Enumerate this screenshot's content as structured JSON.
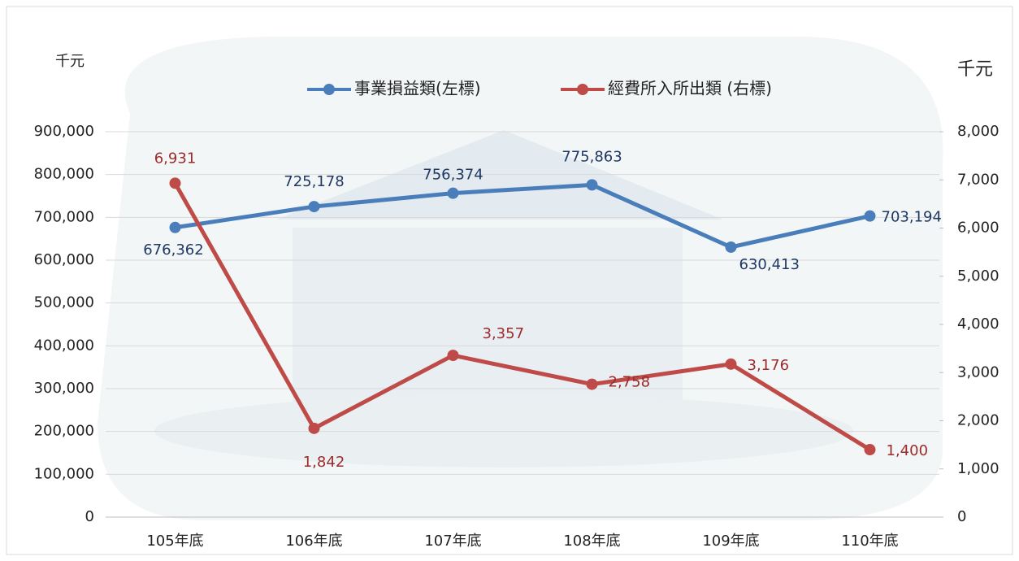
{
  "chart_data": {
    "type": "line",
    "y_label": "千元",
    "y2_label": "千元",
    "categories": [
      "105年底",
      "106年底",
      "107年底",
      "108年底",
      "109年底",
      "110年底"
    ],
    "series": [
      {
        "name": "事業損益類(左標)",
        "color": "#4a7ebb",
        "values": [
          676362,
          725178,
          756374,
          775863,
          630413,
          703194
        ],
        "value_labels": [
          "676,362",
          "725,178",
          "756,374",
          "775,863",
          "630,413",
          "703,194"
        ]
      },
      {
        "name": "經費所入所出類 (右標)",
        "color": "#be4b48",
        "axis": "y2",
        "values": [
          6931,
          1842,
          3357,
          2758,
          3176,
          1400
        ],
        "value_labels": [
          "6,931",
          "1,842",
          "3,357",
          "2,758",
          "3,176",
          "1,400"
        ]
      }
    ],
    "ylim": [
      0,
      900000
    ],
    "yticks": [
      0,
      {
        "value": 100000,
        "label": "100,000"
      },
      {
        "value": 200000,
        "label": "200,000"
      },
      {
        "value": 300000,
        "label": "300,000"
      },
      {
        "value": 400000,
        "label": "400,000"
      },
      {
        "value": 500000,
        "label": "500,000"
      },
      {
        "value": 600000,
        "label": "600,000"
      },
      {
        "value": 700000,
        "label": "700,000"
      },
      {
        "value": 800000,
        "label": "800,000"
      },
      {
        "value": 900000,
        "label": "900,000"
      }
    ],
    "y2lim": [
      0,
      8000
    ],
    "y2ticks": [
      0,
      {
        "value": 1000,
        "label": "1,000"
      },
      {
        "value": 2000,
        "label": "2,000"
      },
      {
        "value": 3000,
        "label": "3,000"
      },
      {
        "value": 4000,
        "label": "4,000"
      },
      {
        "value": 5000,
        "label": "5,000"
      },
      {
        "value": 6000,
        "label": "6,000"
      },
      {
        "value": 7000,
        "label": "7,000"
      },
      {
        "value": 8000,
        "label": "8,000"
      }
    ],
    "grid": true
  }
}
